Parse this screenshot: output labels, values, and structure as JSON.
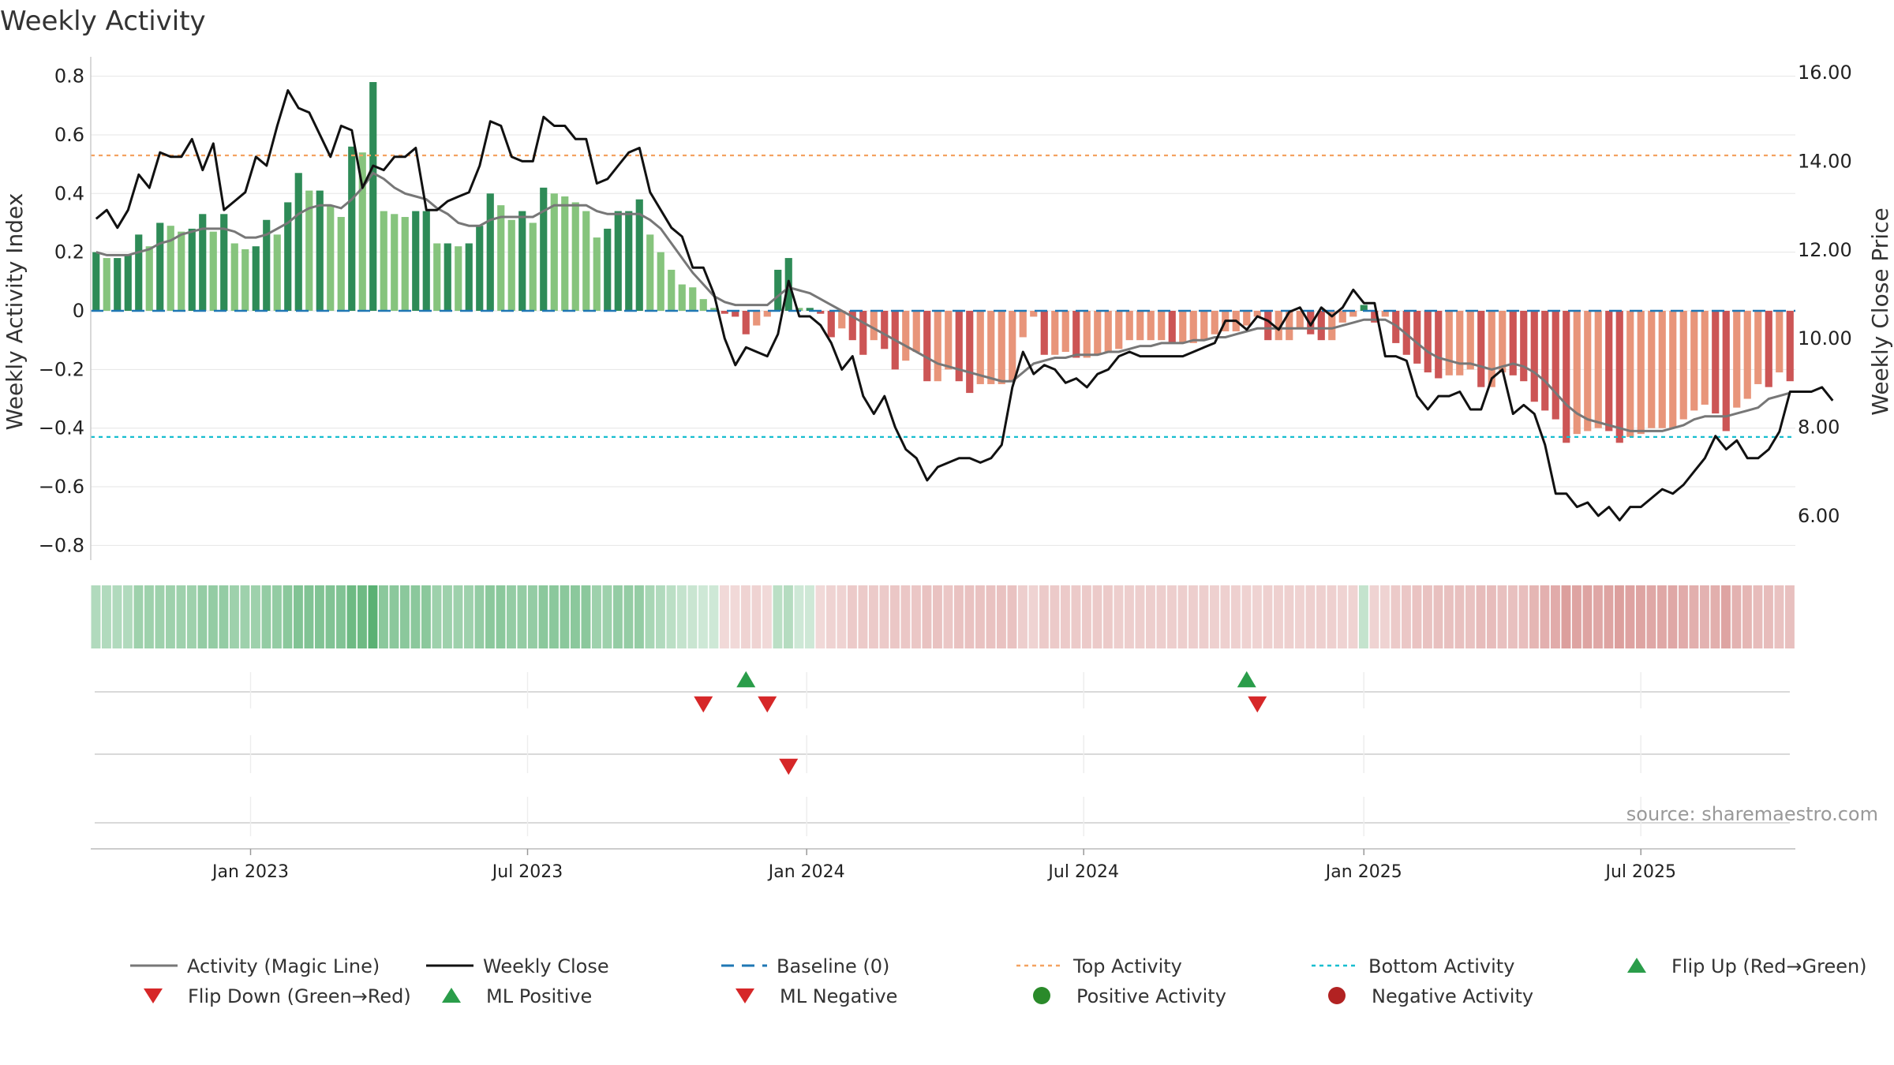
{
  "chart_data": {
    "type": "bar",
    "title": "Weekly Activity",
    "ylabel": "Weekly Activity Index",
    "ylabel_right": "Weekly Close Price",
    "ylim": [
      -0.85,
      0.85
    ],
    "ylim_right": [
      5.0,
      16.25
    ],
    "yticks": [
      {
        "v": 0.8,
        "label": "0.8"
      },
      {
        "v": 0.6,
        "label": "0.6"
      },
      {
        "v": 0.4,
        "label": "0.4"
      },
      {
        "v": 0.2,
        "label": "0.2"
      },
      {
        "v": 0,
        "label": "0"
      },
      {
        "v": -0.2,
        "label": "−0.2"
      },
      {
        "v": -0.4,
        "label": "−0.4"
      },
      {
        "v": -0.6,
        "label": "−0.6"
      },
      {
        "v": -0.8,
        "label": "−0.8"
      }
    ],
    "yticks_right": [
      {
        "v": 16,
        "label": "16.00"
      },
      {
        "v": 14,
        "label": "14.00"
      },
      {
        "v": 12,
        "label": "12.00"
      },
      {
        "v": 10,
        "label": "10.00"
      },
      {
        "v": 8,
        "label": "8.00"
      },
      {
        "v": 6,
        "label": "6.00"
      }
    ],
    "x_start": "2022-09-26",
    "x_end": "2025-09-29",
    "xticks": [
      {
        "i": 14.5,
        "label": "Jan 2023"
      },
      {
        "i": 40.5,
        "label": "Jul 2023"
      },
      {
        "i": 66.7,
        "label": "Jan 2024"
      },
      {
        "i": 92.7,
        "label": "Jul 2024"
      },
      {
        "i": 119,
        "label": "Jan 2025"
      },
      {
        "i": 145,
        "label": "Jul 2025"
      }
    ],
    "top_activity": 0.53,
    "bottom_activity": -0.43,
    "activity": [
      0.2,
      0.18,
      0.18,
      0.19,
      0.26,
      0.22,
      0.3,
      0.29,
      0.27,
      0.28,
      0.33,
      0.27,
      0.33,
      0.23,
      0.21,
      0.22,
      0.31,
      0.26,
      0.37,
      0.47,
      0.41,
      0.41,
      0.36,
      0.32,
      0.56,
      0.54,
      0.78,
      0.34,
      0.33,
      0.32,
      0.34,
      0.34,
      0.23,
      0.23,
      0.22,
      0.23,
      0.29,
      0.4,
      0.36,
      0.31,
      0.34,
      0.3,
      0.42,
      0.4,
      0.39,
      0.37,
      0.34,
      0.25,
      0.28,
      0.34,
      0.34,
      0.38,
      0.26,
      0.2,
      0.14,
      0.09,
      0.08,
      0.04,
      0.01,
      -0.01,
      -0.02,
      -0.08,
      -0.05,
      -0.02,
      0.14,
      0.18,
      0.01,
      0.01,
      -0.01,
      -0.09,
      -0.06,
      -0.1,
      -0.15,
      -0.1,
      -0.13,
      -0.2,
      -0.17,
      -0.14,
      -0.24,
      -0.24,
      -0.2,
      -0.24,
      -0.28,
      -0.25,
      -0.25,
      -0.25,
      -0.24,
      -0.09,
      -0.02,
      -0.15,
      -0.15,
      -0.14,
      -0.16,
      -0.16,
      -0.15,
      -0.14,
      -0.13,
      -0.1,
      -0.1,
      -0.1,
      -0.1,
      -0.11,
      -0.11,
      -0.11,
      -0.1,
      -0.08,
      -0.07,
      -0.07,
      -0.05,
      -0.02,
      -0.1,
      -0.1,
      -0.1,
      -0.06,
      -0.08,
      -0.1,
      -0.1,
      -0.04,
      -0.02,
      0.02,
      -0.04,
      -0.02,
      -0.11,
      -0.15,
      -0.18,
      -0.21,
      -0.23,
      -0.22,
      -0.22,
      -0.2,
      -0.26,
      -0.26,
      -0.21,
      -0.22,
      -0.24,
      -0.31,
      -0.34,
      -0.37,
      -0.45,
      -0.42,
      -0.41,
      -0.4,
      -0.41,
      -0.45,
      -0.43,
      -0.42,
      -0.4,
      -0.4,
      -0.4,
      -0.37,
      -0.34,
      -0.32,
      -0.35,
      -0.41,
      -0.33,
      -0.3,
      -0.25,
      -0.26,
      -0.21,
      -0.24
    ],
    "magic_line": [
      0.2,
      0.19,
      0.19,
      0.19,
      0.2,
      0.21,
      0.23,
      0.24,
      0.26,
      0.27,
      0.28,
      0.28,
      0.28,
      0.27,
      0.25,
      0.25,
      0.26,
      0.28,
      0.3,
      0.33,
      0.35,
      0.36,
      0.36,
      0.35,
      0.38,
      0.42,
      0.47,
      0.45,
      0.42,
      0.4,
      0.39,
      0.38,
      0.35,
      0.33,
      0.3,
      0.29,
      0.29,
      0.31,
      0.32,
      0.32,
      0.32,
      0.32,
      0.34,
      0.36,
      0.36,
      0.36,
      0.36,
      0.34,
      0.33,
      0.33,
      0.33,
      0.33,
      0.31,
      0.28,
      0.23,
      0.18,
      0.13,
      0.09,
      0.05,
      0.03,
      0.02,
      0.02,
      0.02,
      0.02,
      0.05,
      0.08,
      0.07,
      0.06,
      0.04,
      0.02,
      0.0,
      -0.02,
      -0.04,
      -0.06,
      -0.08,
      -0.1,
      -0.12,
      -0.14,
      -0.16,
      -0.18,
      -0.19,
      -0.2,
      -0.21,
      -0.22,
      -0.23,
      -0.24,
      -0.24,
      -0.21,
      -0.18,
      -0.17,
      -0.16,
      -0.16,
      -0.15,
      -0.15,
      -0.15,
      -0.14,
      -0.14,
      -0.13,
      -0.12,
      -0.12,
      -0.11,
      -0.11,
      -0.11,
      -0.1,
      -0.1,
      -0.09,
      -0.09,
      -0.08,
      -0.07,
      -0.06,
      -0.06,
      -0.06,
      -0.06,
      -0.06,
      -0.06,
      -0.06,
      -0.06,
      -0.05,
      -0.04,
      -0.03,
      -0.03,
      -0.03,
      -0.05,
      -0.08,
      -0.11,
      -0.14,
      -0.16,
      -0.17,
      -0.18,
      -0.18,
      -0.19,
      -0.2,
      -0.19,
      -0.18,
      -0.19,
      -0.21,
      -0.24,
      -0.28,
      -0.32,
      -0.35,
      -0.37,
      -0.38,
      -0.39,
      -0.4,
      -0.41,
      -0.41,
      -0.41,
      -0.41,
      -0.4,
      -0.39,
      -0.37,
      -0.36,
      -0.36,
      -0.36,
      -0.35,
      -0.34,
      -0.33,
      -0.3,
      -0.29,
      -0.28
    ],
    "weekly_close": [
      12.7,
      12.9,
      12.5,
      12.9,
      13.7,
      13.4,
      14.2,
      14.1,
      14.1,
      14.5,
      13.8,
      14.4,
      12.9,
      13.1,
      13.3,
      14.1,
      13.9,
      14.8,
      15.6,
      15.2,
      15.1,
      14.6,
      14.1,
      14.8,
      14.7,
      13.4,
      13.9,
      13.8,
      14.1,
      14.1,
      14.3,
      12.9,
      12.9,
      13.1,
      13.2,
      13.3,
      13.9,
      14.9,
      14.8,
      14.1,
      14.0,
      14.0,
      15.0,
      14.8,
      14.8,
      14.5,
      14.5,
      13.5,
      13.6,
      13.9,
      14.2,
      14.3,
      13.3,
      12.9,
      12.5,
      12.3,
      11.6,
      11.6,
      11.0,
      10.0,
      9.4,
      9.8,
      9.7,
      9.6,
      10.1,
      11.3,
      10.5,
      10.5,
      10.3,
      9.9,
      9.3,
      9.6,
      8.7,
      8.3,
      8.7,
      8.0,
      7.5,
      7.3,
      6.8,
      7.1,
      7.2,
      7.3,
      7.3,
      7.2,
      7.3,
      7.6,
      8.9,
      9.7,
      9.2,
      9.4,
      9.3,
      9.0,
      9.1,
      8.9,
      9.2,
      9.3,
      9.6,
      9.7,
      9.6,
      9.6,
      9.6,
      9.6,
      9.6,
      9.7,
      9.8,
      9.9,
      10.4,
      10.4,
      10.2,
      10.5,
      10.4,
      10.2,
      10.6,
      10.7,
      10.3,
      10.7,
      10.5,
      10.7,
      11.1,
      10.8,
      10.8,
      9.6,
      9.6,
      9.5,
      8.7,
      8.4,
      8.7,
      8.7,
      8.8,
      8.4,
      8.4,
      9.1,
      9.3,
      8.3,
      8.5,
      8.3,
      7.6,
      6.5,
      6.5,
      6.2,
      6.3,
      6.0,
      6.2,
      5.9,
      6.2,
      6.2,
      6.4,
      6.6,
      6.5,
      6.7,
      7.0,
      7.3,
      7.8,
      7.5,
      7.7,
      7.3,
      7.3,
      7.5,
      7.9,
      8.8,
      8.8,
      8.8,
      8.9,
      8.6
    ],
    "band_alphas": [
      0.4,
      0.4,
      0.4,
      0.4,
      0.5,
      0.5,
      0.5,
      0.5,
      0.5,
      0.5,
      0.55,
      0.55,
      0.55,
      0.5,
      0.5,
      0.5,
      0.55,
      0.55,
      0.6,
      0.65,
      0.65,
      0.65,
      0.65,
      0.65,
      0.75,
      0.75,
      0.85,
      0.6,
      0.6,
      0.6,
      0.6,
      0.6,
      0.5,
      0.5,
      0.5,
      0.5,
      0.55,
      0.6,
      0.6,
      0.55,
      0.55,
      0.55,
      0.6,
      0.6,
      0.6,
      0.6,
      0.6,
      0.5,
      0.5,
      0.55,
      0.55,
      0.55,
      0.45,
      0.4,
      0.35,
      0.3,
      0.28,
      0.25,
      0.25,
      0.22,
      0.22,
      0.25,
      0.25,
      0.22,
      0.35,
      0.38,
      0.25,
      0.25,
      0.22,
      0.25,
      0.25,
      0.3,
      0.3,
      0.3,
      0.3,
      0.32,
      0.32,
      0.32,
      0.35,
      0.35,
      0.32,
      0.35,
      0.35,
      0.35,
      0.35,
      0.35,
      0.35,
      0.28,
      0.25,
      0.3,
      0.3,
      0.3,
      0.3,
      0.3,
      0.3,
      0.3,
      0.28,
      0.28,
      0.28,
      0.28,
      0.28,
      0.28,
      0.28,
      0.28,
      0.28,
      0.27,
      0.27,
      0.27,
      0.26,
      0.25,
      0.27,
      0.27,
      0.27,
      0.26,
      0.27,
      0.27,
      0.27,
      0.25,
      0.25,
      0.3,
      0.25,
      0.25,
      0.3,
      0.32,
      0.34,
      0.35,
      0.36,
      0.36,
      0.36,
      0.35,
      0.38,
      0.38,
      0.36,
      0.36,
      0.37,
      0.42,
      0.45,
      0.48,
      0.55,
      0.52,
      0.52,
      0.5,
      0.52,
      0.55,
      0.53,
      0.52,
      0.5,
      0.5,
      0.5,
      0.48,
      0.46,
      0.44,
      0.46,
      0.52,
      0.44,
      0.42,
      0.38,
      0.38,
      0.35,
      0.36
    ],
    "flips_up": [
      61,
      108
    ],
    "flips_down": [
      57,
      63,
      109
    ],
    "ml_negative": [
      65
    ],
    "source": "source: sharemaestro.com",
    "legend": [
      {
        "label": "Activity (Magic Line)",
        "symbol": "line",
        "color": "#777777"
      },
      {
        "label": "Weekly Close",
        "symbol": "line",
        "color": "#111111"
      },
      {
        "label": "Baseline (0)",
        "symbol": "dash",
        "color": "#1f77b4"
      },
      {
        "label": "Top Activity",
        "symbol": "dot-line",
        "color": "#f4a261"
      },
      {
        "label": "Bottom Activity",
        "symbol": "dot-line",
        "color": "#17becf"
      },
      {
        "label": "Flip Up (Red→Green)",
        "symbol": "tri-up",
        "color": "#2a9d4a"
      },
      {
        "label": "Flip Down (Green→Red)",
        "symbol": "tri-down",
        "color": "#d62728"
      },
      {
        "label": "ML Positive",
        "symbol": "tri-up",
        "color": "#2a9d4a"
      },
      {
        "label": "ML Negative",
        "symbol": "tri-down",
        "color": "#d62728"
      },
      {
        "label": "Positive Activity",
        "symbol": "circle",
        "color": "#2a8a2a"
      },
      {
        "label": "Negative Activity",
        "symbol": "circle",
        "color": "#b22222"
      }
    ],
    "colors": {
      "pos_dark": "#2e8b57",
      "pos_light": "#86c47d",
      "neg_dark": "#cc5555",
      "neg_light": "#e8957a",
      "band_pos": "#3da35a",
      "band_neg": "#c0504d",
      "close": "#111111",
      "magic": "#777777",
      "baseline": "#1f77b4",
      "top": "#f4a261",
      "bottom": "#17becf"
    }
  }
}
